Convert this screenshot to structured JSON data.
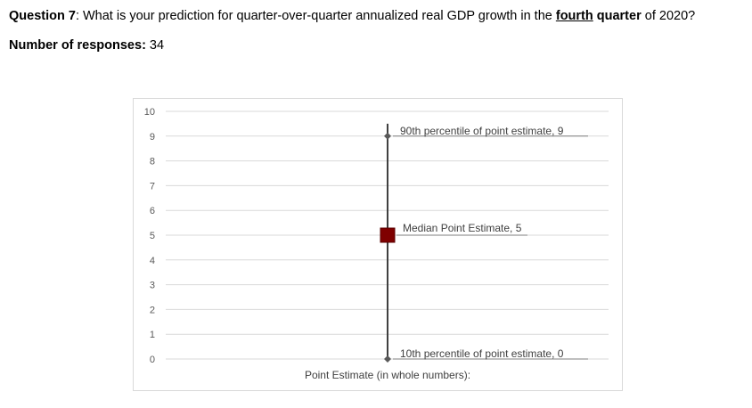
{
  "header": {
    "q_label": "Question 7",
    "q_text_1": ": What is your prediction for quarter-over-quarter annualized real GDP growth in the ",
    "q_emph": "fourth",
    "q_quarter": "quarter",
    "q_text_2": " of 2020?",
    "responses_label": "Number of responses:",
    "responses_value": " 34"
  },
  "chart_data": {
    "type": "scatter",
    "title": "",
    "xlabel": "Point Estimate (in whole numbers):",
    "ylabel": "",
    "ylim": [
      0,
      10
    ],
    "yticks": [
      "0",
      "1",
      "2",
      "3",
      "4",
      "5",
      "6",
      "7",
      "8",
      "9",
      "10"
    ],
    "grid": true,
    "series": [
      {
        "label": "10th percentile of point estimate, 0",
        "y": 0,
        "marker": "diamond",
        "color": "#595959"
      },
      {
        "label": "Median Point Estimate, 5",
        "y": 5,
        "marker": "square",
        "color": "#7f0000"
      },
      {
        "label": "90th percentile of point estimate, 9",
        "y": 9,
        "marker": "diamond",
        "color": "#595959"
      }
    ],
    "range_line": {
      "low": 0,
      "high": 9.5,
      "color": "#404040"
    }
  }
}
